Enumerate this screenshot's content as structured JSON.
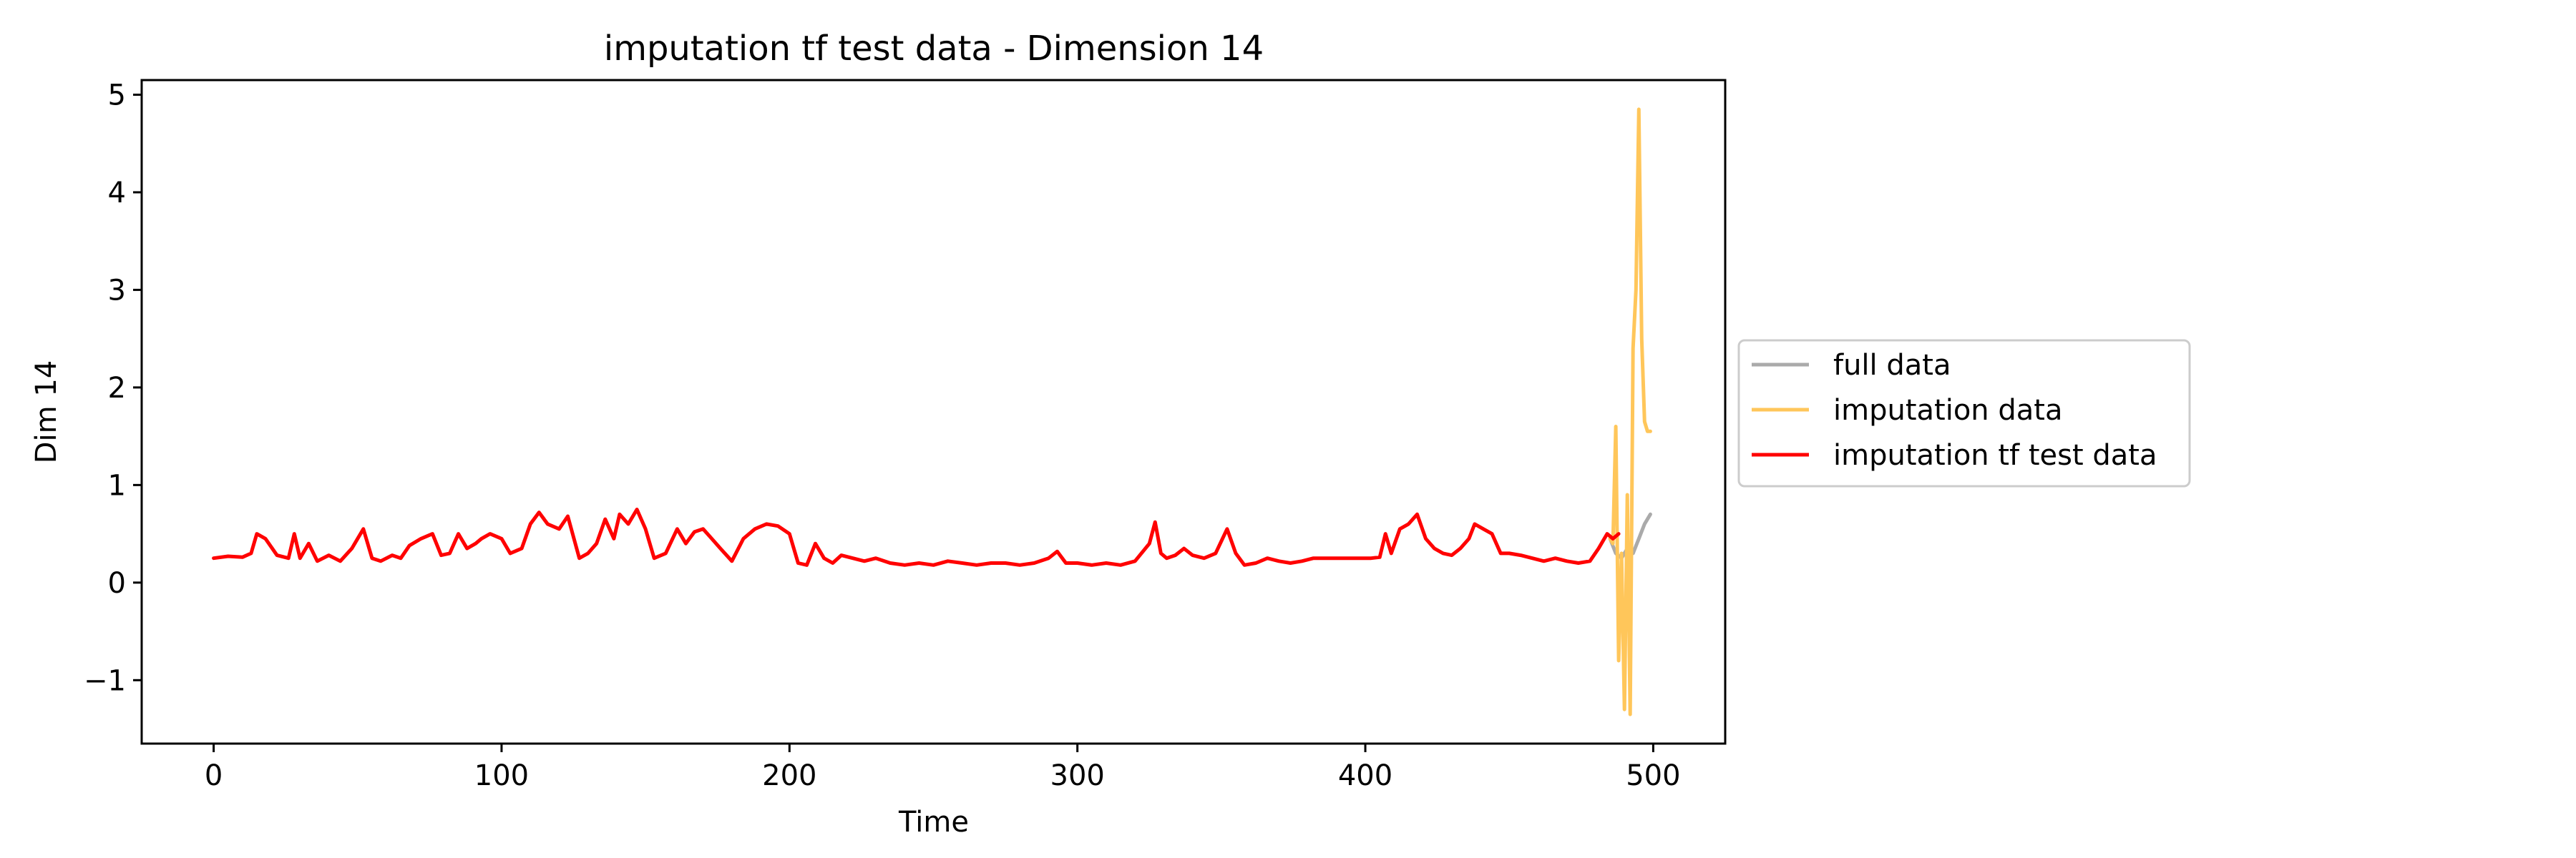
{
  "chart_data": {
    "type": "line",
    "title": "imputation tf test data - Dimension 14",
    "xlabel": "Time",
    "ylabel": "Dim 14",
    "xlim": [
      -25,
      525
    ],
    "ylim": [
      -1.65,
      5.15
    ],
    "xticks": [
      0,
      100,
      200,
      300,
      400,
      500
    ],
    "yticks": [
      -1,
      0,
      1,
      2,
      3,
      4,
      5
    ],
    "xtick_labels": [
      "0",
      "100",
      "200",
      "300",
      "400",
      "500"
    ],
    "ytick_labels": [
      "−1",
      "0",
      "1",
      "2",
      "3",
      "4",
      "5"
    ],
    "grid": false,
    "legend_position": "right, outside plot area",
    "series": [
      {
        "name": "full data",
        "color": "#aaaaaa",
        "x": [
          485,
          487,
          489,
          491,
          493,
          495,
          497,
          499
        ],
        "y": [
          0.45,
          0.3,
          0.25,
          0.35,
          0.3,
          0.45,
          0.6,
          0.7
        ]
      },
      {
        "name": "imputation data",
        "color": "#ffc65a",
        "x": [
          485,
          486,
          487,
          488,
          489,
          490,
          491,
          492,
          493,
          494,
          495,
          496,
          497,
          498,
          499
        ],
        "y": [
          0.45,
          0.4,
          1.6,
          -0.8,
          0.3,
          -1.3,
          0.9,
          -1.35,
          2.4,
          3.0,
          4.85,
          2.5,
          1.65,
          1.55,
          1.55
        ]
      },
      {
        "name": "imputation tf test data",
        "color": "#ff0000",
        "x": [
          0,
          5,
          10,
          13,
          15,
          18,
          22,
          26,
          28,
          30,
          33,
          36,
          40,
          44,
          48,
          52,
          55,
          58,
          62,
          65,
          68,
          72,
          76,
          79,
          82,
          85,
          88,
          91,
          93,
          96,
          100,
          103,
          107,
          110,
          113,
          116,
          120,
          123,
          127,
          130,
          133,
          136,
          139,
          141,
          144,
          147,
          150,
          153,
          157,
          161,
          164,
          167,
          170,
          173,
          176,
          180,
          184,
          188,
          192,
          196,
          200,
          203,
          206,
          209,
          212,
          215,
          218,
          222,
          226,
          230,
          235,
          240,
          245,
          250,
          255,
          260,
          265,
          270,
          275,
          280,
          285,
          290,
          293,
          296,
          300,
          305,
          310,
          315,
          320,
          325,
          327,
          329,
          331,
          334,
          337,
          340,
          344,
          348,
          352,
          355,
          358,
          362,
          366,
          370,
          374,
          378,
          382,
          386,
          390,
          394,
          398,
          402,
          405,
          407,
          409,
          412,
          415,
          418,
          421,
          424,
          427,
          430,
          433,
          436,
          438,
          441,
          444,
          447,
          450,
          454,
          458,
          462,
          466,
          470,
          474,
          478,
          481,
          484,
          486,
          488
        ],
        "y": [
          0.25,
          0.27,
          0.26,
          0.3,
          0.5,
          0.45,
          0.28,
          0.25,
          0.5,
          0.25,
          0.4,
          0.22,
          0.28,
          0.22,
          0.35,
          0.55,
          0.25,
          0.22,
          0.28,
          0.25,
          0.38,
          0.45,
          0.5,
          0.28,
          0.3,
          0.5,
          0.35,
          0.4,
          0.45,
          0.5,
          0.45,
          0.3,
          0.35,
          0.6,
          0.72,
          0.6,
          0.55,
          0.68,
          0.25,
          0.3,
          0.4,
          0.65,
          0.45,
          0.7,
          0.6,
          0.75,
          0.55,
          0.25,
          0.3,
          0.55,
          0.4,
          0.52,
          0.55,
          0.45,
          0.35,
          0.22,
          0.45,
          0.55,
          0.6,
          0.58,
          0.5,
          0.2,
          0.18,
          0.4,
          0.25,
          0.2,
          0.28,
          0.25,
          0.22,
          0.25,
          0.2,
          0.18,
          0.2,
          0.18,
          0.22,
          0.2,
          0.18,
          0.2,
          0.2,
          0.18,
          0.2,
          0.25,
          0.32,
          0.2,
          0.2,
          0.18,
          0.2,
          0.18,
          0.22,
          0.4,
          0.62,
          0.3,
          0.25,
          0.28,
          0.35,
          0.28,
          0.25,
          0.3,
          0.55,
          0.3,
          0.18,
          0.2,
          0.25,
          0.22,
          0.2,
          0.22,
          0.25,
          0.25,
          0.25,
          0.25,
          0.25,
          0.25,
          0.26,
          0.5,
          0.3,
          0.55,
          0.6,
          0.7,
          0.45,
          0.35,
          0.3,
          0.28,
          0.35,
          0.45,
          0.6,
          0.55,
          0.5,
          0.3,
          0.3,
          0.28,
          0.25,
          0.22,
          0.25,
          0.22,
          0.2,
          0.22,
          0.35,
          0.5,
          0.45,
          0.5
        ]
      }
    ]
  }
}
